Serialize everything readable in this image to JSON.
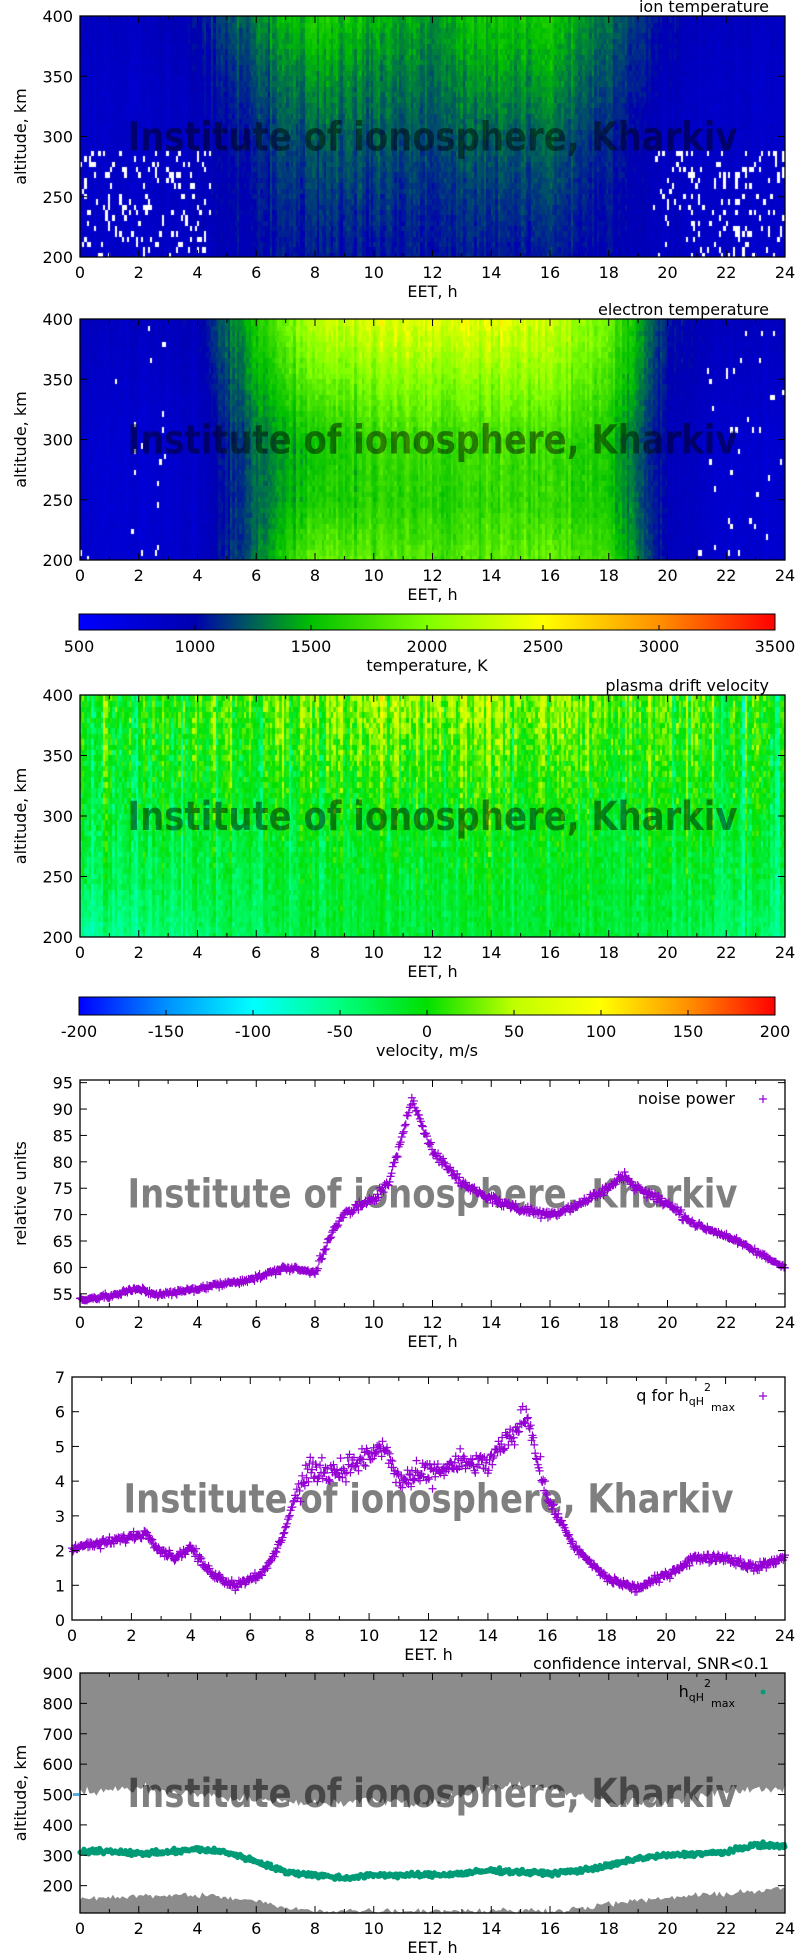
{
  "watermark": "Institute of ionosphere, Kharkiv",
  "chart_data": [
    {
      "type": "heatmap",
      "title": "ion temperature",
      "xlabel": "EET, h",
      "ylabel": "altitude, km",
      "xlim": [
        0,
        24
      ],
      "ylim": [
        200,
        400
      ],
      "xticks": [
        0,
        2,
        4,
        6,
        8,
        10,
        12,
        14,
        16,
        18,
        20,
        22,
        24
      ],
      "yticks": [
        200,
        250,
        300,
        350,
        400
      ],
      "colorbar": "temperature",
      "x": [
        0,
        2,
        4,
        6,
        8,
        10,
        12,
        14,
        16,
        18,
        20,
        22,
        24
      ],
      "y": [
        200,
        250,
        300,
        350,
        400
      ],
      "z": [
        [
          850,
          850,
          900,
          1000,
          1050,
          1050,
          1050,
          1050,
          1050,
          1000,
          900,
          850,
          850
        ],
        [
          850,
          850,
          900,
          1050,
          1150,
          1150,
          1100,
          1150,
          1150,
          1050,
          900,
          850,
          850
        ],
        [
          850,
          850,
          900,
          1100,
          1250,
          1250,
          1200,
          1250,
          1250,
          1100,
          900,
          850,
          850
        ],
        [
          850,
          850,
          950,
          1200,
          1400,
          1350,
          1300,
          1400,
          1400,
          1200,
          950,
          850,
          850
        ],
        [
          900,
          900,
          1000,
          1350,
          1600,
          1500,
          1400,
          1550,
          1550,
          1300,
          1000,
          900,
          900
        ]
      ]
    },
    {
      "type": "heatmap",
      "title": "electron temperature",
      "xlabel": "EET, h",
      "ylabel": "altitude, km",
      "xlim": [
        0,
        24
      ],
      "ylim": [
        200,
        400
      ],
      "xticks": [
        0,
        2,
        4,
        6,
        8,
        10,
        12,
        14,
        16,
        18,
        20,
        22,
        24
      ],
      "yticks": [
        200,
        250,
        300,
        350,
        400
      ],
      "colorbar": "temperature",
      "x": [
        0,
        2,
        4,
        6,
        8,
        10,
        12,
        14,
        16,
        18,
        20,
        22,
        24
      ],
      "y": [
        200,
        250,
        300,
        350,
        400
      ],
      "z": [
        [
          800,
          800,
          850,
          1300,
          1900,
          1850,
          1800,
          1850,
          1900,
          1700,
          950,
          800,
          800
        ],
        [
          800,
          800,
          850,
          1250,
          1600,
          1650,
          1650,
          1700,
          1700,
          1550,
          950,
          800,
          800
        ],
        [
          800,
          800,
          850,
          1300,
          1550,
          1700,
          1750,
          1750,
          1750,
          1550,
          950,
          800,
          800
        ],
        [
          850,
          850,
          900,
          1450,
          1900,
          2000,
          2050,
          2050,
          2050,
          1750,
          1000,
          850,
          850
        ],
        [
          900,
          900,
          950,
          1600,
          2250,
          2350,
          2400,
          2400,
          2300,
          1900,
          1050,
          900,
          900
        ]
      ]
    },
    {
      "type": "colorbar",
      "label": "temperature, K",
      "range": [
        500,
        3500
      ],
      "ticks": [
        500,
        1000,
        1500,
        2000,
        2500,
        3000,
        3500
      ],
      "colors": [
        "#0000ff",
        "#0000b0",
        "#00c000",
        "#80ff00",
        "#ffff00",
        "#ff9000",
        "#ff0000"
      ]
    },
    {
      "type": "heatmap",
      "title": "plasma drift velocity",
      "xlabel": "EET, h",
      "ylabel": "altitude, km",
      "xlim": [
        0,
        24
      ],
      "ylim": [
        200,
        400
      ],
      "xticks": [
        0,
        2,
        4,
        6,
        8,
        10,
        12,
        14,
        16,
        18,
        20,
        22,
        24
      ],
      "yticks": [
        200,
        250,
        300,
        350,
        400
      ],
      "colorbar": "velocity",
      "x": [
        0,
        2,
        4,
        6,
        8,
        10,
        12,
        14,
        16,
        18,
        20,
        22,
        24
      ],
      "y": [
        200,
        250,
        300,
        350,
        400
      ],
      "z": [
        [
          -60,
          -50,
          -40,
          -30,
          -20,
          -20,
          -20,
          -20,
          -20,
          -20,
          -30,
          -40,
          -50
        ],
        [
          -30,
          -30,
          -25,
          -20,
          -15,
          -15,
          -15,
          -15,
          -15,
          -15,
          -20,
          -25,
          -30
        ],
        [
          -20,
          -20,
          -15,
          -10,
          -5,
          -5,
          -5,
          -5,
          -5,
          -10,
          -10,
          -15,
          -20
        ],
        [
          -10,
          -10,
          0,
          10,
          15,
          20,
          20,
          15,
          15,
          10,
          0,
          -5,
          -10
        ],
        [
          0,
          0,
          10,
          30,
          40,
          50,
          50,
          40,
          40,
          30,
          10,
          0,
          0
        ]
      ]
    },
    {
      "type": "colorbar",
      "label": "velocity, m/s",
      "range": [
        -200,
        200
      ],
      "ticks": [
        -200,
        -150,
        -100,
        -50,
        0,
        50,
        100,
        150,
        200
      ],
      "colors": [
        "#0000ff",
        "#0090ff",
        "#00ffff",
        "#00ff80",
        "#00e000",
        "#c0ff00",
        "#ffff00",
        "#ff9000",
        "#ff0000"
      ]
    },
    {
      "type": "scatter",
      "xlabel": "EET, h",
      "ylabel": "relative units",
      "xlim": [
        0,
        24
      ],
      "ylim": [
        52.5,
        95.5
      ],
      "xticks": [
        0,
        2,
        4,
        6,
        8,
        10,
        12,
        14,
        16,
        18,
        20,
        22,
        24
      ],
      "yticks": [
        55,
        60,
        65,
        70,
        75,
        80,
        85,
        90,
        95
      ],
      "legend": "top-right",
      "series": [
        {
          "name": "noise power",
          "color": "#9400d3",
          "marker": "plus",
          "x": [
            0,
            1,
            2,
            2.5,
            3,
            4,
            5,
            6,
            7,
            8,
            8.5,
            9,
            10,
            10.5,
            11,
            11.3,
            11.6,
            12,
            13,
            14,
            15,
            16,
            17,
            18,
            18.5,
            19,
            20,
            21,
            22,
            23,
            24
          ],
          "y": [
            54,
            54.5,
            56,
            55,
            55,
            56,
            57,
            58,
            60,
            59,
            66,
            70,
            73,
            76,
            85,
            92,
            88,
            82,
            76,
            73,
            71,
            70,
            72,
            75,
            77.5,
            75,
            72,
            68,
            66,
            63,
            60
          ]
        }
      ]
    },
    {
      "type": "scatter",
      "xlabel": "EET. h",
      "ylabel": "",
      "xlim": [
        0,
        24
      ],
      "ylim": [
        0,
        7
      ],
      "xticks": [
        0,
        2,
        4,
        6,
        8,
        10,
        12,
        14,
        16,
        18,
        20,
        22,
        24
      ],
      "yticks": [
        0,
        1,
        2,
        3,
        4,
        5,
        6,
        7
      ],
      "legend": "top-right",
      "series": [
        {
          "name": "q for h",
          "name_sub": "qH",
          "name_sup": "2",
          "name_sub2": "max",
          "color": "#9400d3",
          "marker": "plus",
          "x": [
            0,
            1,
            2,
            2.5,
            3,
            3.5,
            4,
            4.5,
            5,
            5.5,
            6,
            6.5,
            7,
            7.5,
            8,
            9,
            10,
            10.5,
            11,
            12,
            13,
            14,
            15,
            15.3,
            16,
            17,
            18,
            19,
            20,
            21,
            22,
            23,
            24
          ],
          "y": [
            2.1,
            2.2,
            2.4,
            2.5,
            2.0,
            1.8,
            2.1,
            1.5,
            1.2,
            1.0,
            1.2,
            1.4,
            2.2,
            3.5,
            4.3,
            4.3,
            4.7,
            5.0,
            4.0,
            4.2,
            4.5,
            4.5,
            5.5,
            6.0,
            3.5,
            2.0,
            1.2,
            0.9,
            1.3,
            1.8,
            1.8,
            1.5,
            1.8
          ]
        }
      ]
    },
    {
      "type": "scatter",
      "title": "confidence interval, SNR<0.1",
      "xlabel": "EET, h",
      "ylabel": "altitude, km",
      "xlim": [
        0,
        24
      ],
      "ylim": [
        110,
        900
      ],
      "xticks": [
        0,
        2,
        4,
        6,
        8,
        10,
        12,
        14,
        16,
        18,
        20,
        22,
        24
      ],
      "yticks": [
        200,
        300,
        400,
        500,
        600,
        700,
        800,
        900
      ],
      "legend": "top-right",
      "series": [
        {
          "name": "h",
          "name_sub": "qH",
          "name_sup": "2",
          "name_sub2": "max",
          "color": "#009b77",
          "marker": "dot",
          "x": [
            0,
            1,
            2,
            3,
            4,
            5,
            6,
            7,
            8,
            9,
            10,
            11,
            12,
            13,
            14,
            15,
            16,
            17,
            18,
            19,
            20,
            21,
            22,
            23,
            24
          ],
          "y": [
            310,
            315,
            305,
            310,
            320,
            310,
            280,
            245,
            235,
            225,
            235,
            235,
            235,
            240,
            250,
            245,
            240,
            250,
            265,
            290,
            300,
            305,
            310,
            335,
            330
          ]
        }
      ],
      "confidence_band_color": "#8c8c8c",
      "upper_band_lower_edge": {
        "x": [
          0,
          2,
          4,
          6,
          8,
          10,
          12,
          14,
          16,
          18,
          20,
          22,
          24
        ],
        "y": [
          510,
          520,
          500,
          480,
          470,
          480,
          470,
          530,
          520,
          470,
          480,
          510,
          520
        ]
      },
      "lower_band_upper_edge": {
        "x": [
          0,
          2,
          4,
          6,
          7,
          8,
          10,
          12,
          14,
          16,
          17,
          18,
          20,
          22,
          24
        ],
        "y": [
          160,
          165,
          170,
          150,
          125,
          118,
          118,
          118,
          118,
          118,
          125,
          140,
          160,
          175,
          190
        ]
      }
    }
  ]
}
